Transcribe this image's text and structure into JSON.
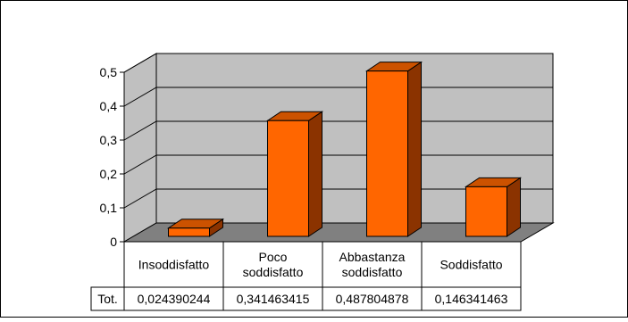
{
  "chart_data": {
    "type": "bar",
    "style": "3d-column",
    "categories": [
      "Insoddisfatto",
      "Poco soddisfatto",
      "Abbastanza soddisfatto",
      "Soddisfatto"
    ],
    "category_lines": [
      [
        "Insoddisfatto"
      ],
      [
        "Poco",
        "soddisfatto"
      ],
      [
        "Abbastanza",
        "soddisfatto"
      ],
      [
        "Soddisfatto"
      ]
    ],
    "series": [
      {
        "name": "Tot.",
        "values": [
          0.024390244,
          0.341463415,
          0.487804878,
          0.146341463
        ]
      }
    ],
    "value_labels": [
      "0,024390244",
      "0,341463415",
      "0,487804878",
      "0,146341463"
    ],
    "yticks": [
      "0",
      "0,1",
      "0,2",
      "0,3",
      "0,4",
      "0,5"
    ],
    "ylim": [
      0,
      0.5
    ],
    "grid": true,
    "legend": "data-table",
    "colors": {
      "bar_front": "#FF6600",
      "bar_top": "#CC5200",
      "bar_side": "#8B3300",
      "back_wall": "#C0C0C0",
      "floor": "#808080"
    }
  }
}
